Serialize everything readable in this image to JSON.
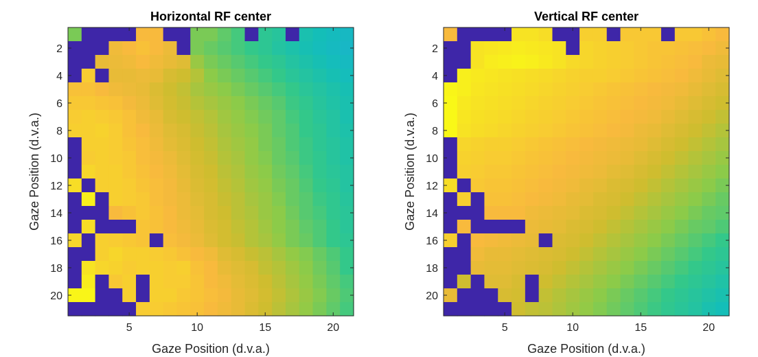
{
  "colormap_stops": [
    "#3e26a8",
    "#4850f4",
    "#2e87f7",
    "#1bafd2",
    "#14beb8",
    "#33c88a",
    "#8ccb49",
    "#cfbd2f",
    "#f8ba3d",
    "#f7dd26",
    "#f9fb15"
  ],
  "chart_data": [
    {
      "type": "heatmap",
      "title": "Horizontal RF center",
      "xlabel": "Gaze Position (d.v.a.)",
      "ylabel": "Gaze Position (d.v.a.)",
      "xlim": [
        0.5,
        21.5
      ],
      "ylim": [
        0.5,
        21.5
      ],
      "y_reversed": true,
      "x_ticks": [
        "5",
        "10",
        "15",
        "20"
      ],
      "y_ticks": [
        "2",
        "4",
        "6",
        "8",
        "10",
        "12",
        "14",
        "16",
        "18",
        "20"
      ],
      "color_scale": [
        0,
        1
      ],
      "grid": [
        [
          0.58,
          0,
          0,
          0,
          0,
          0.8,
          0.8,
          0,
          0,
          0.58,
          0.58,
          0.55,
          0.52,
          0,
          0.48,
          0.46,
          0,
          0.42,
          0.4,
          0.38,
          0.36
        ],
        [
          0,
          0,
          0,
          0.78,
          0.8,
          0.82,
          0.8,
          0.77,
          0,
          0.58,
          0.56,
          0.54,
          0.52,
          0.5,
          0.48,
          0.45,
          0.43,
          0.41,
          0.39,
          0.37,
          0.35
        ],
        [
          0,
          0,
          0.76,
          0.77,
          0.78,
          0.8,
          0.78,
          0.76,
          0.74,
          0.62,
          0.58,
          0.56,
          0.54,
          0.52,
          0.5,
          0.48,
          0.45,
          0.43,
          0.41,
          0.39,
          0.37
        ],
        [
          0,
          0.85,
          0,
          0.76,
          0.76,
          0.77,
          0.76,
          0.72,
          0.7,
          0.66,
          0.6,
          0.58,
          0.56,
          0.54,
          0.52,
          0.5,
          0.47,
          0.45,
          0.43,
          0.41,
          0.39
        ],
        [
          0.82,
          0.82,
          0.8,
          0.78,
          0.77,
          0.76,
          0.73,
          0.7,
          0.68,
          0.64,
          0.62,
          0.6,
          0.58,
          0.56,
          0.54,
          0.52,
          0.5,
          0.47,
          0.45,
          0.43,
          0.41
        ],
        [
          0.84,
          0.84,
          0.83,
          0.82,
          0.79,
          0.77,
          0.74,
          0.71,
          0.69,
          0.66,
          0.64,
          0.62,
          0.6,
          0.58,
          0.56,
          0.54,
          0.51,
          0.49,
          0.46,
          0.44,
          0.42
        ],
        [
          0.85,
          0.86,
          0.85,
          0.84,
          0.82,
          0.78,
          0.76,
          0.72,
          0.7,
          0.68,
          0.66,
          0.63,
          0.61,
          0.59,
          0.57,
          0.55,
          0.52,
          0.5,
          0.47,
          0.45,
          0.42
        ],
        [
          0.86,
          0.86,
          0.87,
          0.85,
          0.82,
          0.8,
          0.77,
          0.74,
          0.72,
          0.69,
          0.67,
          0.64,
          0.62,
          0.6,
          0.58,
          0.55,
          0.53,
          0.5,
          0.48,
          0.45,
          0.43
        ],
        [
          0,
          0.86,
          0.86,
          0.85,
          0.83,
          0.81,
          0.78,
          0.75,
          0.73,
          0.7,
          0.68,
          0.65,
          0.63,
          0.61,
          0.58,
          0.56,
          0.53,
          0.51,
          0.48,
          0.46,
          0.44
        ],
        [
          0,
          0.85,
          0.86,
          0.85,
          0.84,
          0.81,
          0.79,
          0.77,
          0.74,
          0.71,
          0.69,
          0.66,
          0.64,
          0.61,
          0.59,
          0.56,
          0.54,
          0.51,
          0.49,
          0.46,
          0.44
        ],
        [
          0,
          0.88,
          0.86,
          0.86,
          0.84,
          0.82,
          0.8,
          0.78,
          0.75,
          0.72,
          0.7,
          0.67,
          0.65,
          0.62,
          0.6,
          0.57,
          0.55,
          0.52,
          0.49,
          0.47,
          0.45
        ],
        [
          0.9,
          0,
          0.86,
          0.86,
          0.85,
          0.83,
          0.81,
          0.79,
          0.76,
          0.73,
          0.71,
          0.68,
          0.66,
          0.63,
          0.61,
          0.58,
          0.56,
          0.53,
          0.5,
          0.48,
          0.45
        ],
        [
          0,
          0.96,
          0,
          0.86,
          0.85,
          0.84,
          0.81,
          0.79,
          0.77,
          0.74,
          0.72,
          0.69,
          0.67,
          0.64,
          0.62,
          0.59,
          0.56,
          0.54,
          0.51,
          0.49,
          0.46
        ],
        [
          0,
          0,
          0,
          0.8,
          0.82,
          0.84,
          0.82,
          0.8,
          0.77,
          0.75,
          0.72,
          0.7,
          0.67,
          0.65,
          0.62,
          0.6,
          0.57,
          0.54,
          0.52,
          0.49,
          0.47
        ],
        [
          0,
          0.9,
          0,
          0,
          0,
          0.83,
          0.82,
          0.8,
          0.78,
          0.76,
          0.73,
          0.71,
          0.68,
          0.66,
          0.63,
          0.6,
          0.58,
          0.55,
          0.53,
          0.5,
          0.47
        ],
        [
          0.88,
          0,
          0.86,
          0.85,
          0.84,
          0.83,
          0,
          0.81,
          0.79,
          0.77,
          0.74,
          0.71,
          0.69,
          0.66,
          0.64,
          0.61,
          0.58,
          0.56,
          0.53,
          0.5,
          0.48
        ],
        [
          0,
          0,
          0.86,
          0.88,
          0.86,
          0.86,
          0.85,
          0.84,
          0.82,
          0.8,
          0.78,
          0.74,
          0.72,
          0.69,
          0.67,
          0.64,
          0.61,
          0.59,
          0.56,
          0.53,
          0.5
        ],
        [
          0,
          0.92,
          0.88,
          0.87,
          0.85,
          0.86,
          0.86,
          0.85,
          0.86,
          0.82,
          0.8,
          0.76,
          0.74,
          0.72,
          0.68,
          0.66,
          0.63,
          0.6,
          0.57,
          0.54,
          0.5
        ],
        [
          0,
          0.95,
          0,
          0.84,
          0.86,
          0,
          0.86,
          0.85,
          0.85,
          0.83,
          0.8,
          0.78,
          0.75,
          0.73,
          0.7,
          0.67,
          0.64,
          0.61,
          0.58,
          0.55,
          0.52
        ],
        [
          0.98,
          0.98,
          0,
          0,
          0.86,
          0,
          0.86,
          0.86,
          0.84,
          0.83,
          0.81,
          0.79,
          0.76,
          0.74,
          0.71,
          0.68,
          0.65,
          0.62,
          0.59,
          0.56,
          0.53
        ],
        [
          0,
          0,
          0,
          0,
          0,
          0.85,
          0.85,
          0.84,
          0.83,
          0.82,
          0.8,
          0.78,
          0.76,
          0.73,
          0.7,
          0.67,
          0.64,
          0.61,
          0.58,
          0.55,
          0.52
        ]
      ]
    },
    {
      "type": "heatmap",
      "title": "Vertical RF center",
      "xlabel": "Gaze Position (d.v.a.)",
      "ylabel": "Gaze Position (d.v.a.)",
      "xlim": [
        0.5,
        21.5
      ],
      "ylim": [
        0.5,
        21.5
      ],
      "y_reversed": true,
      "x_ticks": [
        "5",
        "10",
        "15",
        "20"
      ],
      "y_ticks": [
        "2",
        "4",
        "6",
        "8",
        "10",
        "12",
        "14",
        "16",
        "18",
        "20"
      ],
      "color_scale": [
        0,
        1
      ],
      "grid": [
        [
          0.8,
          0,
          0,
          0,
          0,
          0.92,
          0.92,
          0.9,
          0,
          0,
          0.86,
          0.86,
          0,
          0.84,
          0.84,
          0.84,
          0,
          0.84,
          0.84,
          0.82,
          0.8
        ],
        [
          0,
          0,
          0.92,
          0.93,
          0.94,
          0.95,
          0.94,
          0.93,
          0.92,
          0,
          0.88,
          0.87,
          0.86,
          0.85,
          0.84,
          0.83,
          0.83,
          0.82,
          0.81,
          0.8,
          0.78
        ],
        [
          0,
          0,
          0.92,
          0.95,
          0.96,
          0.97,
          0.96,
          0.94,
          0.92,
          0.89,
          0.88,
          0.87,
          0.86,
          0.85,
          0.84,
          0.83,
          0.82,
          0.81,
          0.8,
          0.77,
          0.76
        ],
        [
          0,
          0.96,
          0.94,
          0.93,
          0.92,
          0.91,
          0.9,
          0.89,
          0.88,
          0.87,
          0.86,
          0.86,
          0.85,
          0.84,
          0.83,
          0.82,
          0.81,
          0.8,
          0.78,
          0.76,
          0.74
        ],
        [
          0.98,
          0.96,
          0.93,
          0.92,
          0.91,
          0.9,
          0.89,
          0.88,
          0.87,
          0.86,
          0.85,
          0.84,
          0.83,
          0.82,
          0.81,
          0.8,
          0.79,
          0.78,
          0.76,
          0.74,
          0.72
        ],
        [
          0.99,
          0.94,
          0.92,
          0.91,
          0.9,
          0.89,
          0.88,
          0.87,
          0.86,
          0.85,
          0.84,
          0.83,
          0.82,
          0.81,
          0.8,
          0.79,
          0.78,
          0.76,
          0.74,
          0.72,
          0.7
        ],
        [
          0.99,
          0.93,
          0.91,
          0.9,
          0.89,
          0.88,
          0.87,
          0.86,
          0.85,
          0.84,
          0.83,
          0.82,
          0.81,
          0.8,
          0.79,
          0.78,
          0.76,
          0.74,
          0.72,
          0.7,
          0.68
        ],
        [
          0.99,
          0.92,
          0.9,
          0.89,
          0.88,
          0.87,
          0.86,
          0.85,
          0.84,
          0.83,
          0.82,
          0.81,
          0.8,
          0.79,
          0.77,
          0.76,
          0.74,
          0.72,
          0.7,
          0.68,
          0.66
        ],
        [
          0,
          0.88,
          0.87,
          0.86,
          0.86,
          0.85,
          0.84,
          0.83,
          0.82,
          0.81,
          0.8,
          0.79,
          0.78,
          0.77,
          0.76,
          0.74,
          0.72,
          0.7,
          0.68,
          0.66,
          0.64
        ],
        [
          0,
          0.87,
          0.86,
          0.85,
          0.85,
          0.84,
          0.83,
          0.82,
          0.81,
          0.8,
          0.79,
          0.78,
          0.77,
          0.76,
          0.74,
          0.72,
          0.7,
          0.68,
          0.66,
          0.64,
          0.62
        ],
        [
          0,
          0.86,
          0.85,
          0.84,
          0.84,
          0.83,
          0.82,
          0.81,
          0.8,
          0.79,
          0.78,
          0.77,
          0.75,
          0.74,
          0.72,
          0.7,
          0.68,
          0.66,
          0.64,
          0.62,
          0.6
        ],
        [
          0.9,
          0,
          0.84,
          0.83,
          0.83,
          0.82,
          0.81,
          0.8,
          0.79,
          0.78,
          0.76,
          0.75,
          0.73,
          0.72,
          0.7,
          0.68,
          0.66,
          0.64,
          0.62,
          0.6,
          0.58
        ],
        [
          0,
          0.86,
          0,
          0.82,
          0.82,
          0.81,
          0.8,
          0.79,
          0.78,
          0.76,
          0.75,
          0.73,
          0.72,
          0.7,
          0.68,
          0.66,
          0.64,
          0.62,
          0.6,
          0.58,
          0.56
        ],
        [
          0,
          0,
          0,
          0.8,
          0.8,
          0.8,
          0.78,
          0.77,
          0.76,
          0.75,
          0.73,
          0.72,
          0.7,
          0.68,
          0.66,
          0.64,
          0.62,
          0.6,
          0.58,
          0.56,
          0.55
        ],
        [
          0,
          0.8,
          0,
          0,
          0,
          0,
          0.77,
          0.76,
          0.75,
          0.73,
          0.72,
          0.7,
          0.68,
          0.66,
          0.64,
          0.62,
          0.6,
          0.58,
          0.56,
          0.55,
          0.53
        ],
        [
          0.86,
          0,
          0.8,
          0.79,
          0.78,
          0.77,
          0.76,
          0,
          0.73,
          0.72,
          0.7,
          0.68,
          0.66,
          0.64,
          0.62,
          0.6,
          0.58,
          0.56,
          0.54,
          0.52,
          0.5
        ],
        [
          0,
          0,
          0.78,
          0.76,
          0.76,
          0.75,
          0.74,
          0.73,
          0.72,
          0.7,
          0.68,
          0.66,
          0.64,
          0.62,
          0.6,
          0.58,
          0.56,
          0.54,
          0.52,
          0.5,
          0.48
        ],
        [
          0,
          0,
          0.76,
          0.75,
          0.75,
          0.74,
          0.73,
          0.72,
          0.7,
          0.68,
          0.66,
          0.64,
          0.62,
          0.6,
          0.58,
          0.56,
          0.54,
          0.52,
          0.5,
          0.48,
          0.46
        ],
        [
          0,
          0.7,
          0,
          0.74,
          0.74,
          0.72,
          0,
          0.7,
          0.68,
          0.66,
          0.64,
          0.62,
          0.6,
          0.58,
          0.56,
          0.54,
          0.52,
          0.5,
          0.48,
          0.46,
          0.44
        ],
        [
          0.76,
          0,
          0,
          0,
          0.72,
          0.71,
          0,
          0.68,
          0.66,
          0.64,
          0.62,
          0.6,
          0.58,
          0.56,
          0.54,
          0.52,
          0.5,
          0.48,
          0.46,
          0.44,
          0.42
        ],
        [
          0,
          0,
          0,
          0,
          0,
          0.7,
          0.68,
          0.67,
          0.65,
          0.63,
          0.61,
          0.59,
          0.57,
          0.55,
          0.53,
          0.51,
          0.49,
          0.47,
          0.45,
          0.42,
          0.4
        ]
      ]
    }
  ]
}
